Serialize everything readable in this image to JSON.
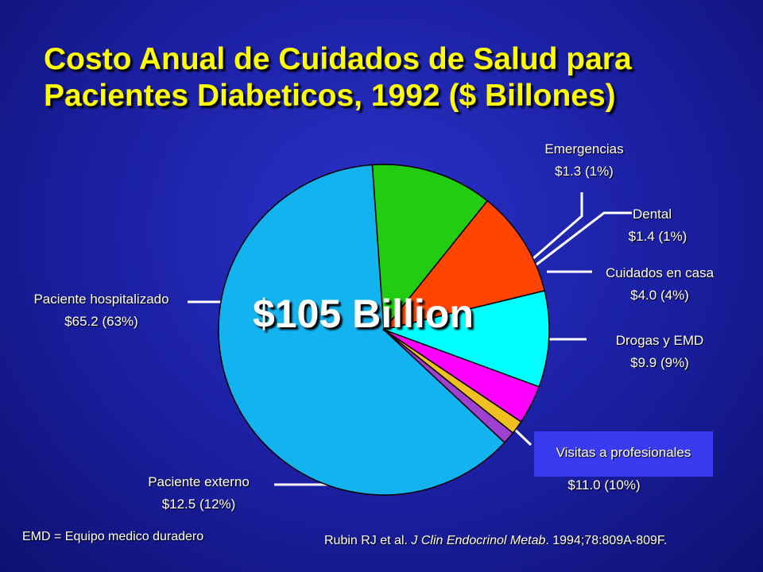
{
  "title": {
    "line1": "Costo Anual de Cuidados de Salud para",
    "line2": "Pacientes Diabeticos, 1992 ($ Billones)"
  },
  "center_label": "$105 Billion",
  "footnote": "EMD = Equipo medico duradero",
  "citation": {
    "authors": "Rubin RJ et al. ",
    "journal": "J Clin Endocrinol Metab",
    "details": ". 1994;78:809A-809F."
  },
  "chart_data": {
    "type": "pie",
    "unit": "$ Billones",
    "total_label": "$105 Billion",
    "slices": [
      {
        "name": "Paciente hospitalizado",
        "value": 65.2,
        "percent": 63,
        "value_label": "$65.2 (63%)",
        "color": "#13b3f0"
      },
      {
        "name": "Emergencias",
        "value": 1.3,
        "percent": 1,
        "value_label": "$1.3 (1%)",
        "color": "#a040d0"
      },
      {
        "name": "Dental",
        "value": 1.4,
        "percent": 1,
        "value_label": "$1.4 (1%)",
        "color": "#f0c020"
      },
      {
        "name": "Cuidados en casa",
        "value": 4.0,
        "percent": 4,
        "value_label": "$4.0 (4%)",
        "color": "#ff00ff"
      },
      {
        "name": "Drogas y EMD",
        "value": 9.9,
        "percent": 9,
        "value_label": "$9.9 (9%)",
        "color": "#00ffff"
      },
      {
        "name": "Visitas a profesionales",
        "value": 11.0,
        "percent": 10,
        "value_label": "$11.0 (10%)",
        "color": "#ff4500"
      },
      {
        "name": "Paciente externo",
        "value": 12.5,
        "percent": 12,
        "value_label": "$12.5 (12%)",
        "color": "#22cc11"
      }
    ]
  }
}
